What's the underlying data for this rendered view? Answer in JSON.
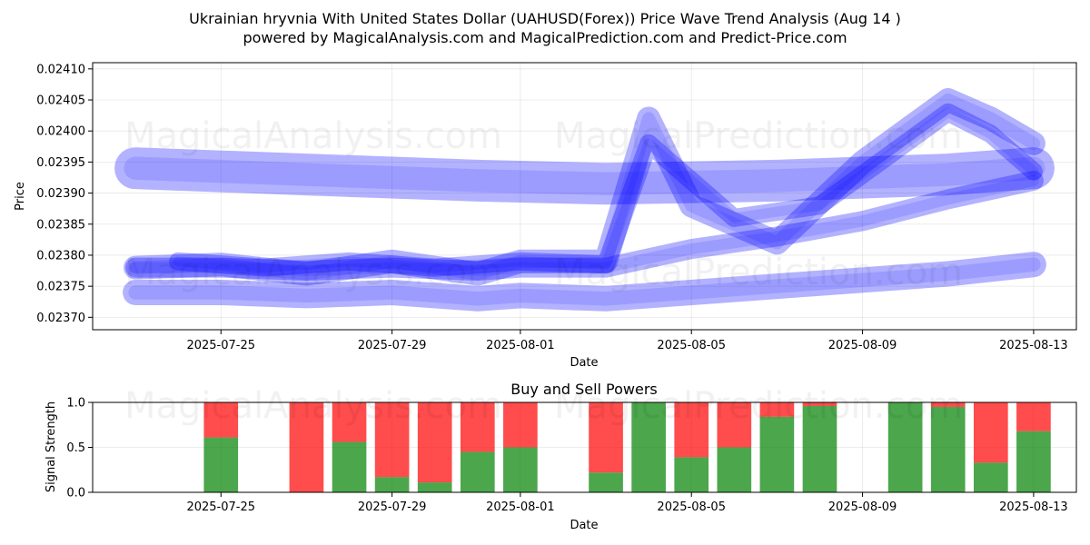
{
  "header": {
    "title_line1": "Ukrainian hryvnia With United States Dollar (UAHUSD(Forex)) Price Wave Trend Analysis (Aug 14 )",
    "title_line2": "powered by MagicalAnalysis.com and MagicalPrediction.com and Predict-Price.com"
  },
  "watermarks": {
    "left": "MagicalAnalysis.com",
    "right": "MagicalPrediction.com"
  },
  "colors": {
    "band": "#0000ff",
    "buy": "#008000",
    "sell": "#ff0000",
    "grid": "#b0b0b0"
  },
  "chart_data": [
    {
      "type": "line",
      "title": "",
      "xlabel": "Date",
      "ylabel": "Price",
      "x_ticks": [
        "2025-07-25",
        "2025-07-29",
        "2025-08-01",
        "2025-08-05",
        "2025-08-09",
        "2025-08-13"
      ],
      "y_ticks": [
        "0.02370",
        "0.02375",
        "0.02380",
        "0.02385",
        "0.02390",
        "0.02395",
        "0.02400",
        "0.02405",
        "0.02410"
      ],
      "xlim": [
        "2025-07-22",
        "2025-08-14"
      ],
      "ylim": [
        0.02368,
        0.02411
      ],
      "grid": true,
      "series": [
        {
          "x": [
            "2025-07-23",
            "2025-07-27",
            "2025-07-31",
            "2025-08-03",
            "2025-08-07",
            "2025-08-11",
            "2025-08-13"
          ],
          "values": [
            0.02394,
            0.02393,
            0.02392,
            0.023915,
            0.02392,
            0.02393,
            0.02394
          ]
        },
        {
          "x": [
            "2025-07-23",
            "2025-07-25",
            "2025-07-27",
            "2025-07-29",
            "2025-07-31",
            "2025-08-01",
            "2025-08-03",
            "2025-08-05",
            "2025-08-07",
            "2025-08-09",
            "2025-08-11",
            "2025-08-13"
          ],
          "values": [
            0.02374,
            0.02374,
            0.023735,
            0.02374,
            0.02373,
            0.023735,
            0.02373,
            0.02374,
            0.02375,
            0.02376,
            0.02377,
            0.023785
          ]
        },
        {
          "x": [
            "2025-07-23",
            "2025-07-25",
            "2025-07-27",
            "2025-07-29",
            "2025-07-31",
            "2025-08-01",
            "2025-08-03",
            "2025-08-05",
            "2025-08-07",
            "2025-08-09",
            "2025-08-11",
            "2025-08-13"
          ],
          "values": [
            0.02378,
            0.02378,
            0.023775,
            0.02378,
            0.023775,
            0.02378,
            0.02378,
            0.02381,
            0.02383,
            0.023855,
            0.02389,
            0.02392
          ]
        },
        {
          "x": [
            "2025-07-23",
            "2025-07-25",
            "2025-07-27",
            "2025-07-29",
            "2025-07-31",
            "2025-08-01",
            "2025-08-03",
            "2025-08-04",
            "2025-08-05",
            "2025-08-07",
            "2025-08-09",
            "2025-08-11",
            "2025-08-12",
            "2025-08-13"
          ],
          "values": [
            0.02378,
            0.023785,
            0.02377,
            0.02379,
            0.02377,
            0.02379,
            0.02379,
            0.02402,
            0.02388,
            0.02382,
            0.02395,
            0.02405,
            0.02402,
            0.02398
          ]
        },
        {
          "x": [
            "2025-07-24",
            "2025-07-26",
            "2025-07-28",
            "2025-07-30",
            "2025-08-01",
            "2025-08-03",
            "2025-08-04",
            "2025-08-05",
            "2025-08-06",
            "2025-08-08",
            "2025-08-10",
            "2025-08-11",
            "2025-08-12",
            "2025-08-13"
          ],
          "values": [
            0.02379,
            0.02378,
            0.02379,
            0.02378,
            0.02379,
            0.023785,
            0.02398,
            0.02392,
            0.02386,
            0.02388,
            0.02398,
            0.02403,
            0.023995,
            0.023935
          ]
        }
      ]
    },
    {
      "type": "bar",
      "title": "Buy and Sell Powers",
      "xlabel": "Date",
      "ylabel": "Signal Strength",
      "x_ticks": [
        "2025-07-25",
        "2025-07-29",
        "2025-08-01",
        "2025-08-05",
        "2025-08-09",
        "2025-08-13"
      ],
      "y_ticks": [
        "0.0",
        "0.5",
        "1.0"
      ],
      "ylim": [
        0,
        1
      ],
      "grid": true,
      "categories": [
        "2025-07-24",
        "2025-07-25",
        "2025-07-26",
        "2025-07-27",
        "2025-07-28",
        "2025-07-29",
        "2025-07-30",
        "2025-07-31",
        "2025-08-01",
        "2025-08-02",
        "2025-08-03",
        "2025-08-04",
        "2025-08-05",
        "2025-08-06",
        "2025-08-07",
        "2025-08-08",
        "2025-08-09",
        "2025-08-10",
        "2025-08-11",
        "2025-08-12",
        "2025-08-13"
      ],
      "series": [
        {
          "values": [
            null,
            0.61,
            null,
            0.0,
            0.56,
            0.17,
            0.11,
            0.45,
            0.5,
            null,
            0.22,
            1.0,
            0.39,
            0.5,
            0.84,
            0.96,
            null,
            1.0,
            0.95,
            0.33,
            0.68
          ]
        },
        {
          "values": [
            null,
            0.39,
            null,
            1.0,
            0.44,
            0.83,
            0.89,
            0.55,
            0.5,
            null,
            0.78,
            0.0,
            0.61,
            0.5,
            0.16,
            0.04,
            null,
            0.0,
            0.05,
            0.67,
            0.32
          ]
        }
      ]
    }
  ]
}
